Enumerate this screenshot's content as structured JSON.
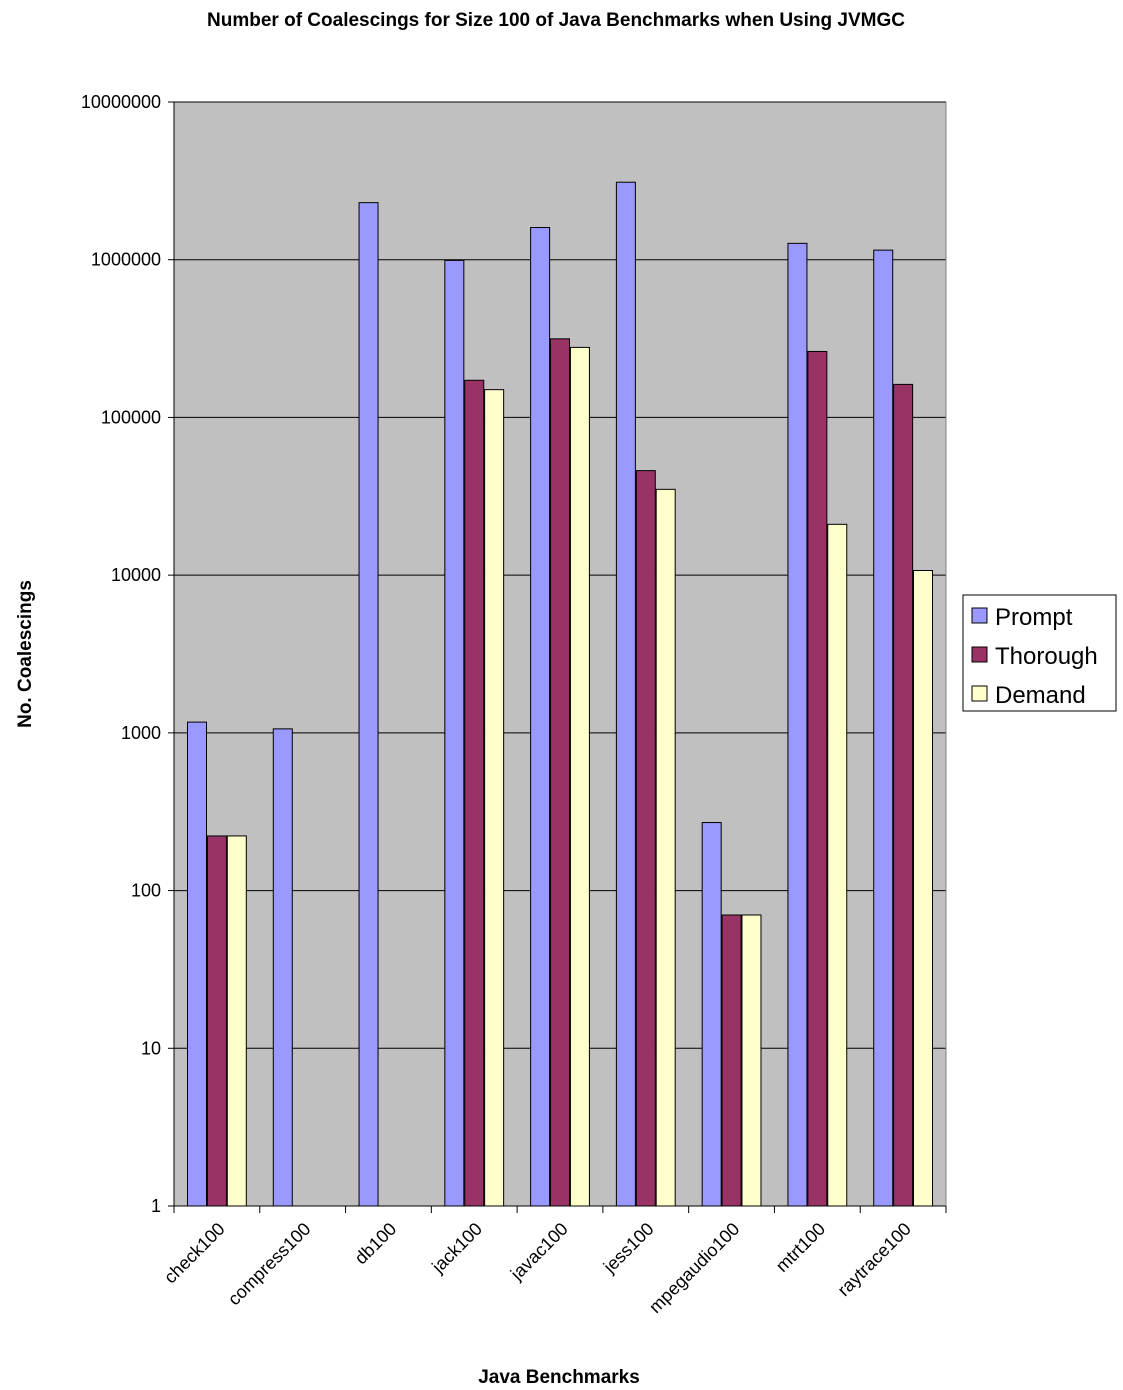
{
  "chart_data": {
    "type": "bar",
    "title": "Number of Coalescings for Size 100 of Java Benchmarks when Using JVMGC",
    "xlabel": "Java Benchmarks",
    "ylabel": "No. Coalescings",
    "yscale": "log",
    "ylim": [
      1,
      10000000
    ],
    "yticks": [
      "1",
      "10",
      "100",
      "1000",
      "10000",
      "100000",
      "1000000",
      "10000000"
    ],
    "grid": true,
    "legend_position": "right",
    "plot_background": "#C0C0C0",
    "categories": [
      "check100",
      "compress100",
      "db100",
      "jack100",
      "javac100",
      "jess100",
      "mpegaudio100",
      "mtrt100",
      "raytrace100"
    ],
    "series": [
      {
        "name": "Prompt",
        "color": "#9999FF",
        "values": [
          1170,
          1060,
          2300000,
          990000,
          1600000,
          3100000,
          270,
          1270000,
          1150000
        ]
      },
      {
        "name": "Thorough",
        "color": "#993366",
        "values": [
          222,
          null,
          null,
          172000,
          315000,
          46000,
          70,
          262000,
          162000
        ]
      },
      {
        "name": "Demand",
        "color": "#FFFFCC",
        "values": [
          222,
          null,
          null,
          150000,
          278000,
          35000,
          70,
          21000,
          10700
        ]
      }
    ]
  }
}
